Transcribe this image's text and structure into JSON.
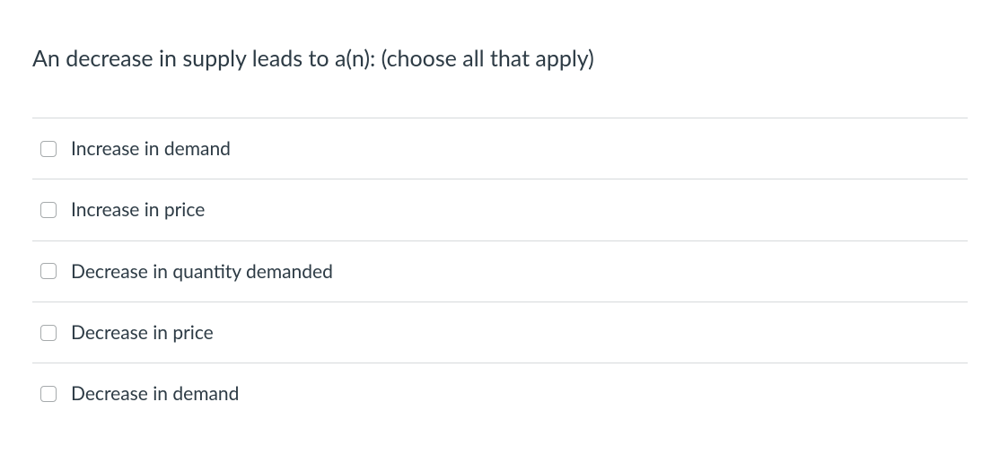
{
  "question": {
    "text": "An decrease in supply leads to a(n): (choose all that apply)",
    "text_color": "#2d3b45",
    "fontsize": 25
  },
  "options": [
    {
      "label": "Increase in demand",
      "checked": false
    },
    {
      "label": "Increase in price",
      "checked": false
    },
    {
      "label": "Decrease in quantity demanded",
      "checked": false
    },
    {
      "label": "Decrease in price",
      "checked": false
    },
    {
      "label": "Decrease in demand",
      "checked": false
    }
  ],
  "colors": {
    "background": "#ffffff",
    "text": "#2d3b45",
    "border": "#d6d9db",
    "checkbox_border": "#a6aaac"
  }
}
